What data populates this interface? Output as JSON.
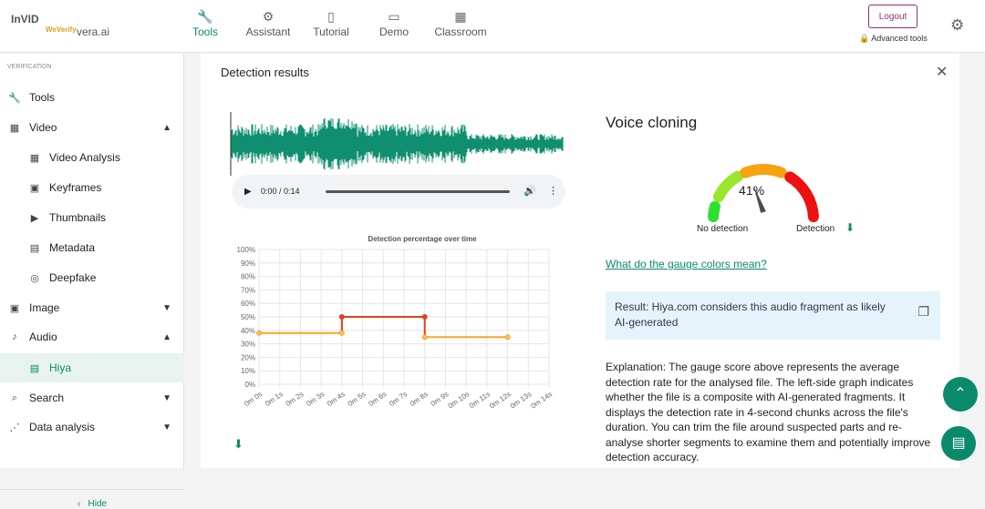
{
  "header": {
    "logos": [
      "InVID",
      "WeVerify",
      "vera.ai"
    ],
    "nav": [
      {
        "label": "Tools",
        "icon": "wrench-icon"
      },
      {
        "label": "Assistant",
        "icon": "robot-icon"
      },
      {
        "label": "Tutorial",
        "icon": "book-icon"
      },
      {
        "label": "Demo",
        "icon": "tv-icon"
      },
      {
        "label": "Classroom",
        "icon": "classroom-icon"
      }
    ],
    "logout": "Logout",
    "advanced": "Advanced tools"
  },
  "sidebar": {
    "section": "VERIFICATION",
    "items": [
      {
        "label": "Tools"
      },
      {
        "label": "Video"
      },
      {
        "label": "Video Analysis"
      },
      {
        "label": "Keyframes"
      },
      {
        "label": "Thumbnails"
      },
      {
        "label": "Metadata"
      },
      {
        "label": "Deepfake"
      },
      {
        "label": "Image"
      },
      {
        "label": "Audio"
      },
      {
        "label": "Hiya"
      },
      {
        "label": "Search"
      },
      {
        "label": "Data analysis"
      }
    ],
    "hide": "Hide"
  },
  "panel": {
    "title": "Detection results",
    "audio_time": "0:00 / 0:14",
    "voice_title": "Voice cloning",
    "gauge_value": "41%",
    "gauge_percent": 41,
    "no_detection": "No detection",
    "detection": "Detection",
    "gauge_link": "What do the gauge colors mean?",
    "result": "Result: Hiya.com considers this audio fragment as likely AI-generated",
    "explanation": "Explanation: The gauge score above represents the average detection rate for the analysed file. The left-side graph indicates whether the file is a composite with AI-generated fragments. It displays the detection rate in 4-second chunks across the file's duration. You can trim the file around suspected parts and re-analyse shorter segments to examine them and potentially improve detection accuracy."
  },
  "chart_data": {
    "type": "line",
    "title": "Detection percentage over time",
    "x_ticks": [
      "0m 0s",
      "0m 1s",
      "0m 2s",
      "0m 3s",
      "0m 4s",
      "0m 5s",
      "0m 6s",
      "0m 7s",
      "0m 8s",
      "0m 9s",
      "0m 10s",
      "0m 11s",
      "0m 12s",
      "0m 13s",
      "0m 14s"
    ],
    "y_ticks": [
      "0%",
      "10%",
      "20%",
      "30%",
      "40%",
      "50%",
      "60%",
      "70%",
      "80%",
      "90%",
      "100%"
    ],
    "ylim": [
      0,
      100
    ],
    "xlim": [
      0,
      14
    ],
    "points": [
      [
        0,
        38
      ],
      [
        4,
        38
      ],
      [
        4,
        50
      ],
      [
        8,
        50
      ],
      [
        8,
        35
      ],
      [
        12,
        35
      ]
    ],
    "colors": {
      "low": "#f5a623",
      "high": "#e0401a"
    }
  }
}
